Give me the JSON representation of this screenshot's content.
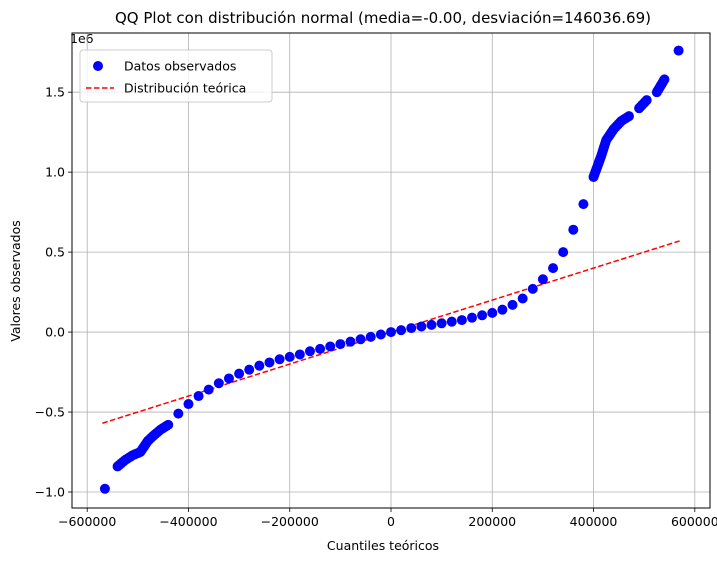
{
  "chart_data": {
    "type": "scatter",
    "title": "QQ Plot con distribución normal (media=-0.00, desviación=146036.69)",
    "xlabel": "Cuantiles teóricos",
    "ylabel": "Valores observados",
    "y_offset_label": "1e6",
    "xlim": [
      -630000,
      630000
    ],
    "ylim": [
      -1.1,
      1.87
    ],
    "x_ticks": [
      -600000,
      -400000,
      -200000,
      0,
      200000,
      400000,
      600000
    ],
    "x_tick_labels": [
      "−600000",
      "−400000",
      "−200000",
      "0",
      "200000",
      "400000",
      "600000"
    ],
    "y_ticks": [
      -1.0,
      -0.5,
      0.0,
      0.5,
      1.0,
      1.5
    ],
    "y_tick_labels": [
      "−1.0",
      "−0.5",
      "0.0",
      "0.5",
      "1.0",
      "1.5"
    ],
    "grid": true,
    "legend_position": "upper-left",
    "colors": {
      "observed": "#0000ff",
      "theoretical": "#ff0000"
    },
    "series": [
      {
        "name": "Datos observados",
        "kind": "scatter",
        "points": [
          [
            -565000,
            -0.98
          ],
          [
            -540000,
            -0.84
          ],
          [
            -525000,
            -0.8
          ],
          [
            -510000,
            -0.77
          ],
          [
            -495000,
            -0.75
          ],
          [
            -480000,
            -0.68
          ],
          [
            -470000,
            -0.65
          ],
          [
            -455000,
            -0.61
          ],
          [
            -440000,
            -0.58
          ],
          [
            -420000,
            -0.51
          ],
          [
            -400000,
            -0.45
          ],
          [
            -380000,
            -0.4
          ],
          [
            -360000,
            -0.36
          ],
          [
            -340000,
            -0.32
          ],
          [
            -320000,
            -0.29
          ],
          [
            -300000,
            -0.26
          ],
          [
            -280000,
            -0.235
          ],
          [
            -260000,
            -0.21
          ],
          [
            -240000,
            -0.19
          ],
          [
            -220000,
            -0.17
          ],
          [
            -200000,
            -0.155
          ],
          [
            -180000,
            -0.14
          ],
          [
            -160000,
            -0.12
          ],
          [
            -140000,
            -0.105
          ],
          [
            -120000,
            -0.09
          ],
          [
            -100000,
            -0.075
          ],
          [
            -80000,
            -0.06
          ],
          [
            -60000,
            -0.045
          ],
          [
            -40000,
            -0.03
          ],
          [
            -20000,
            -0.015
          ],
          [
            0,
            0.0
          ],
          [
            20000,
            0.012
          ],
          [
            40000,
            0.025
          ],
          [
            60000,
            0.035
          ],
          [
            80000,
            0.045
          ],
          [
            100000,
            0.055
          ],
          [
            120000,
            0.065
          ],
          [
            140000,
            0.075
          ],
          [
            160000,
            0.09
          ],
          [
            180000,
            0.105
          ],
          [
            200000,
            0.12
          ],
          [
            220000,
            0.14
          ],
          [
            240000,
            0.17
          ],
          [
            260000,
            0.21
          ],
          [
            280000,
            0.27
          ],
          [
            300000,
            0.33
          ],
          [
            320000,
            0.4
          ],
          [
            340000,
            0.5
          ],
          [
            360000,
            0.64
          ],
          [
            380000,
            0.8
          ],
          [
            400000,
            0.97
          ],
          [
            415000,
            1.1
          ],
          [
            425000,
            1.2
          ],
          [
            440000,
            1.27
          ],
          [
            455000,
            1.32
          ],
          [
            470000,
            1.35
          ],
          [
            490000,
            1.4
          ],
          [
            505000,
            1.45
          ],
          [
            525000,
            1.5
          ],
          [
            540000,
            1.58
          ],
          [
            568000,
            1.76
          ]
        ]
      },
      {
        "name": "Distribución teórica",
        "kind": "line",
        "style": "dashed",
        "points": [
          [
            -570000,
            -0.57
          ],
          [
            570000,
            0.57
          ]
        ]
      }
    ]
  }
}
